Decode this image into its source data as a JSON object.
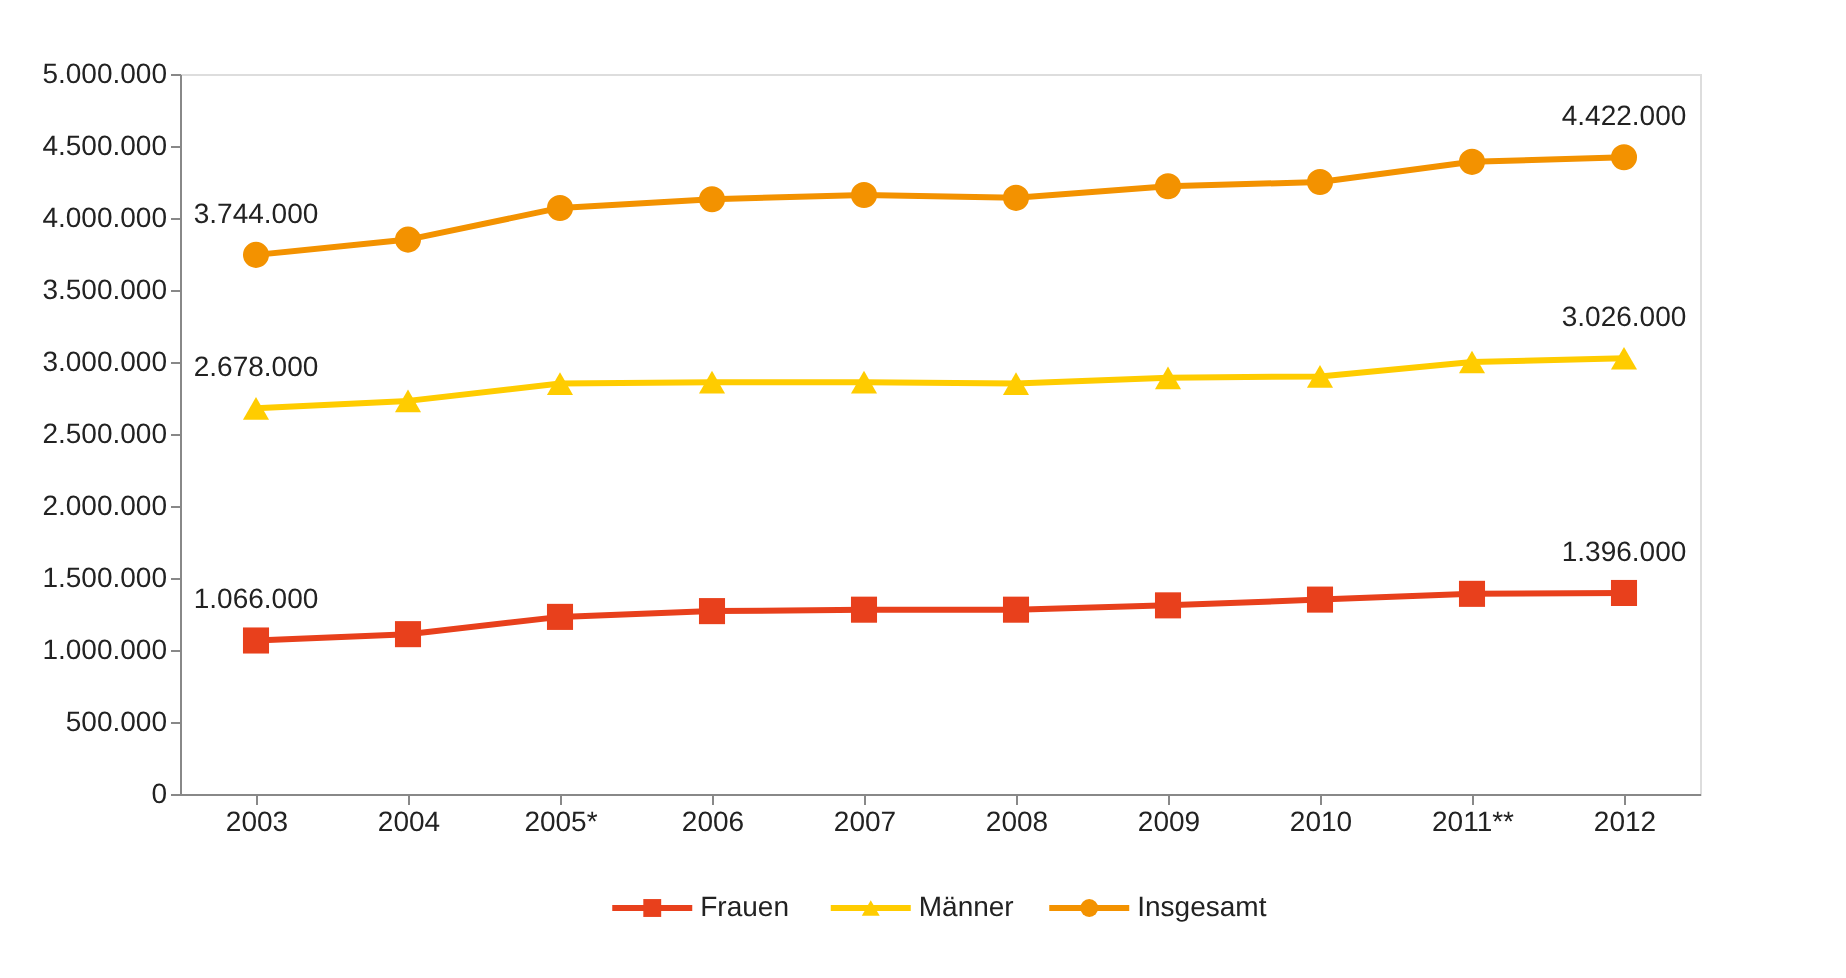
{
  "chart_data": {
    "type": "line",
    "categories": [
      "2003",
      "2004",
      "2005*",
      "2006",
      "2007",
      "2008",
      "2009",
      "2010",
      "2011**",
      "2012"
    ],
    "series": [
      {
        "name": "Frauen",
        "color": "#e8401c",
        "marker": "square",
        "values": [
          1066000,
          1110000,
          1230000,
          1270000,
          1280000,
          1280000,
          1310000,
          1350000,
          1390000,
          1396000
        ],
        "value_labels": [
          "1.066.000",
          null,
          null,
          null,
          null,
          null,
          null,
          null,
          null,
          "1.396.000"
        ]
      },
      {
        "name": "Männer",
        "color": "#ffcc00",
        "marker": "triangle",
        "values": [
          2678000,
          2730000,
          2850000,
          2860000,
          2860000,
          2850000,
          2890000,
          2900000,
          3000000,
          3026000
        ],
        "value_labels": [
          "2.678.000",
          null,
          null,
          null,
          null,
          null,
          null,
          null,
          null,
          "3.026.000"
        ]
      },
      {
        "name": "Insgesamt",
        "color": "#f39200",
        "marker": "circle",
        "values": [
          3744000,
          3850000,
          4070000,
          4130000,
          4160000,
          4140000,
          4220000,
          4250000,
          4390000,
          4422000
        ],
        "value_labels": [
          "3.744.000",
          null,
          null,
          null,
          null,
          null,
          null,
          null,
          null,
          "4.422.000"
        ]
      }
    ],
    "ylim": [
      0,
      5000000
    ],
    "yticks": [
      0,
      {
        "value": 500000,
        "label": "500.000"
      },
      {
        "value": 1000000,
        "label": "1.000.000"
      },
      {
        "value": 1500000,
        "label": "1.500.000"
      },
      {
        "value": 2000000,
        "label": "2.000.000"
      },
      {
        "value": 2500000,
        "label": "2.500.000"
      },
      {
        "value": 3000000,
        "label": "3.000.000"
      },
      {
        "value": 3500000,
        "label": "3.500.000"
      },
      {
        "value": 4000000,
        "label": "4.000.000"
      },
      {
        "value": 4500000,
        "label": "4.500.000"
      },
      {
        "value": 5000000,
        "label": "5.000.000"
      }
    ],
    "grid": false,
    "legend": "bottom",
    "line_style": "solid"
  }
}
